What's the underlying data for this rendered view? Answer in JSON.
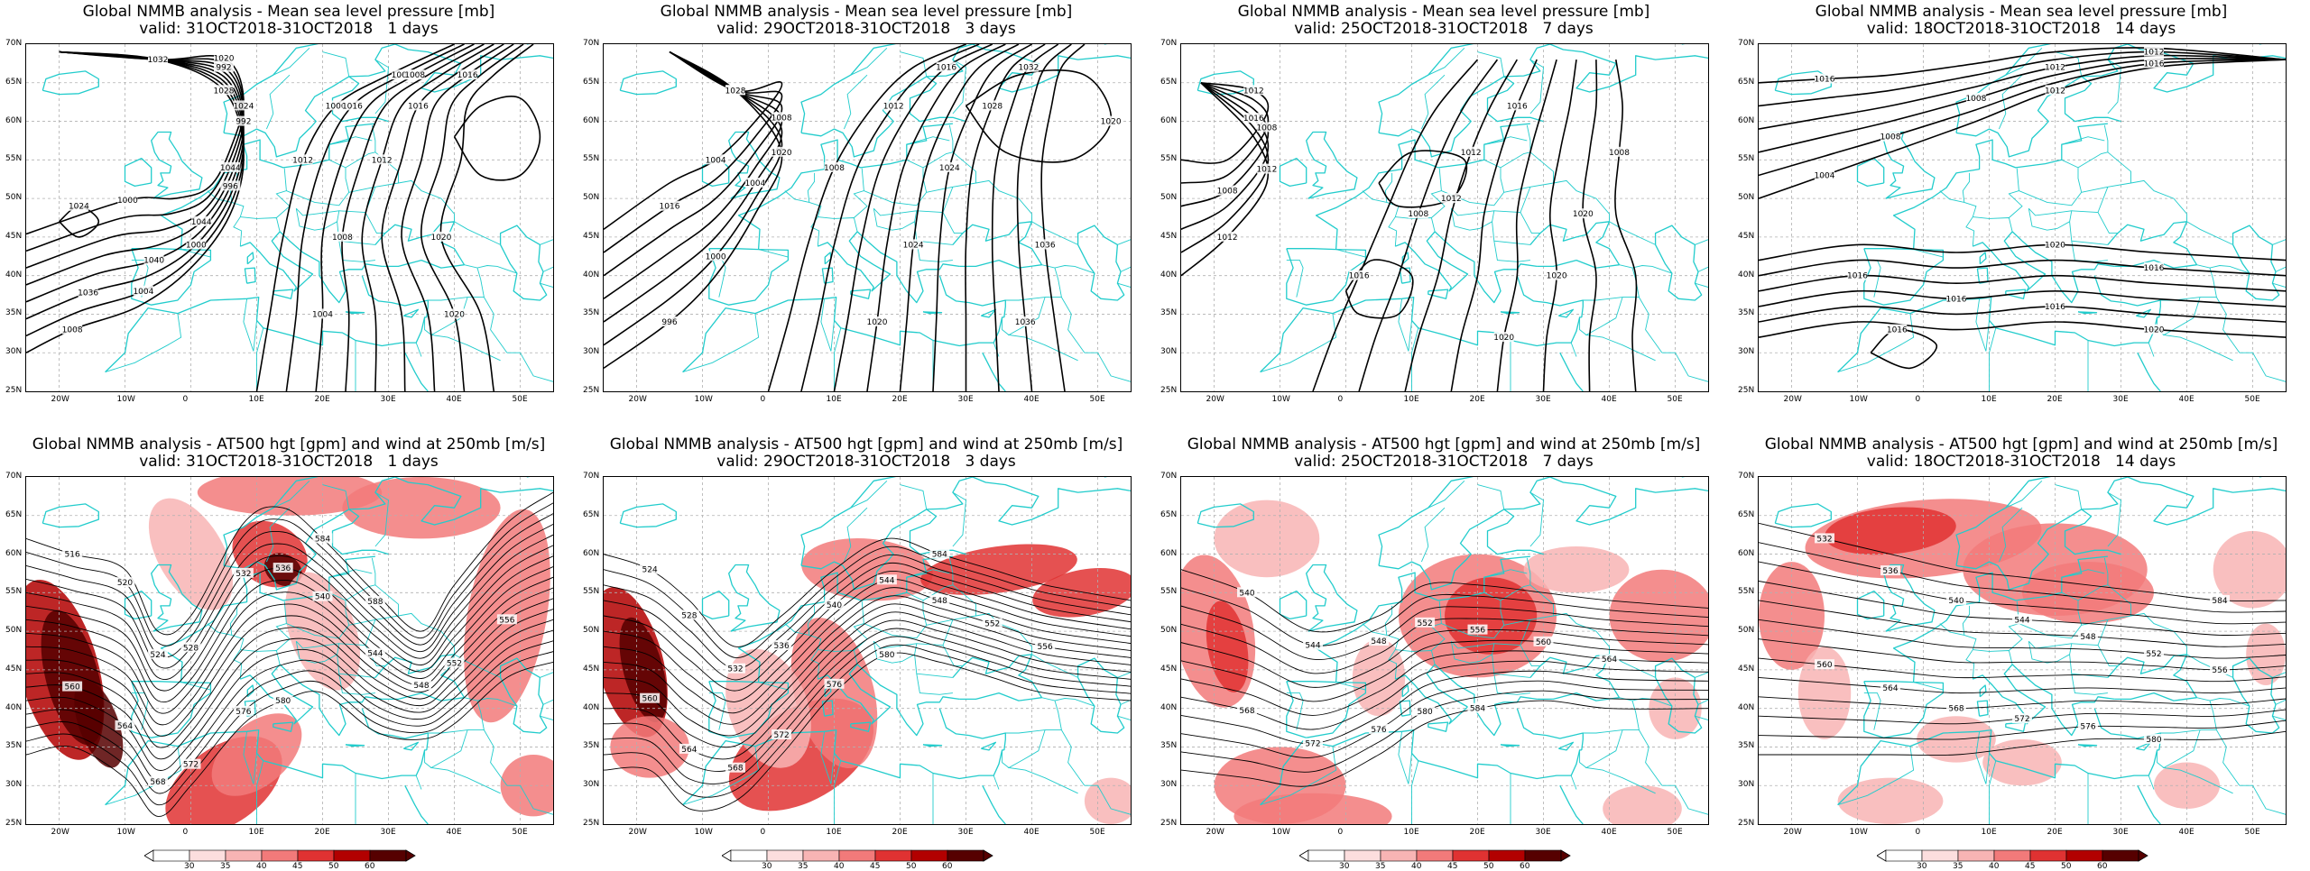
{
  "panels": [
    {
      "title": "Global NMMB analysis - Mean sea level pressure [mb]",
      "valid": "valid: 31OCT2018-31OCT2018   1 days",
      "kind": "mslp",
      "contour_labels": [
        "1008",
        "1004",
        "1000",
        "996",
        "992",
        "992",
        "996",
        "1000",
        "1000",
        "1000",
        "1004",
        "1008",
        "1012",
        "1016",
        "1016",
        "1020",
        "1020",
        "1024",
        "1024",
        "1028",
        "1032",
        "1036",
        "1040",
        "1044",
        "1044",
        "1024",
        "1020",
        "1012",
        "1016",
        "1008"
      ]
    },
    {
      "title": "Global NMMB analysis - Mean sea level pressure [mb]",
      "valid": "valid: 29OCT2018-31OCT2018   3 days",
      "kind": "mslp",
      "contour_labels": [
        "996",
        "1000",
        "1004",
        "1008",
        "1012",
        "1016",
        "1004",
        "1008",
        "1012",
        "1016",
        "1020",
        "1024",
        "1024",
        "1028",
        "1032",
        "1036",
        "1036",
        "1020",
        "1020",
        "1028"
      ]
    },
    {
      "title": "Global NMMB analysis - Mean sea level pressure [mb]",
      "valid": "valid: 25OCT2018-31OCT2018   7 days",
      "kind": "mslp",
      "contour_labels": [
        "1012",
        "1012",
        "1016",
        "1008",
        "1008",
        "1012",
        "1016",
        "1008",
        "1012",
        "1016",
        "1020",
        "1020",
        "1020",
        "1008",
        "1012"
      ]
    },
    {
      "title": "Global NMMB analysis - Mean sea level pressure [mb]",
      "valid": "valid: 18OCT2018-31OCT2018   14 days",
      "kind": "mslp",
      "contour_labels": [
        "1004",
        "1008",
        "1008",
        "1012",
        "1012",
        "1016",
        "1020",
        "1016",
        "1016",
        "1016",
        "1016",
        "1020",
        "1016",
        "1012",
        "1016"
      ]
    },
    {
      "title": "Global NMMB analysis - AT500 hgt [gpm] and wind at 250mb [m/s]",
      "valid": "valid: 31OCT2018-31OCT2018   1 days",
      "kind": "z500",
      "contour_labels": [
        "516",
        "520",
        "524",
        "528",
        "532",
        "536",
        "540",
        "544",
        "548",
        "552",
        "556",
        "560",
        "564",
        "568",
        "572",
        "576",
        "580",
        "584",
        "588"
      ]
    },
    {
      "title": "Global NMMB analysis - AT500 hgt [gpm] and wind at 250mb [m/s]",
      "valid": "valid: 29OCT2018-31OCT2018   3 days",
      "kind": "z500",
      "contour_labels": [
        "524",
        "528",
        "532",
        "536",
        "540",
        "544",
        "548",
        "552",
        "556",
        "560",
        "564",
        "568",
        "572",
        "576",
        "580",
        "584"
      ]
    },
    {
      "title": "Global NMMB analysis - AT500 hgt [gpm] and wind at 250mb [m/s]",
      "valid": "valid: 25OCT2018-31OCT2018   7 days",
      "kind": "z500",
      "contour_labels": [
        "540",
        "544",
        "548",
        "552",
        "556",
        "560",
        "564",
        "568",
        "572",
        "576",
        "580",
        "584"
      ]
    },
    {
      "title": "Global NMMB analysis - AT500 hgt [gpm] and wind at 250mb [m/s]",
      "valid": "valid: 18OCT2018-31OCT2018   14 days",
      "kind": "z500",
      "contour_labels": [
        "532",
        "536",
        "540",
        "544",
        "548",
        "552",
        "556",
        "560",
        "564",
        "568",
        "572",
        "576",
        "580",
        "584"
      ]
    }
  ],
  "axes": {
    "lon_labels": [
      "20W",
      "10W",
      "0",
      "10E",
      "20E",
      "30E",
      "40E",
      "50E"
    ],
    "lat_labels": [
      "70N",
      "65N",
      "60N",
      "55N",
      "50N",
      "45N",
      "40N",
      "35N",
      "30N",
      "25N"
    ]
  },
  "colorbar": {
    "labels": [
      "30",
      "35",
      "40",
      "45",
      "50",
      "60"
    ],
    "colors": [
      "#ffffff",
      "#fcdede",
      "#f8b4b4",
      "#f27a7a",
      "#e03232",
      "#b20000",
      "#560000"
    ]
  },
  "colors": {
    "coast": "#22cccc",
    "contour": "#000000",
    "grid": "#b0b0b0"
  }
}
